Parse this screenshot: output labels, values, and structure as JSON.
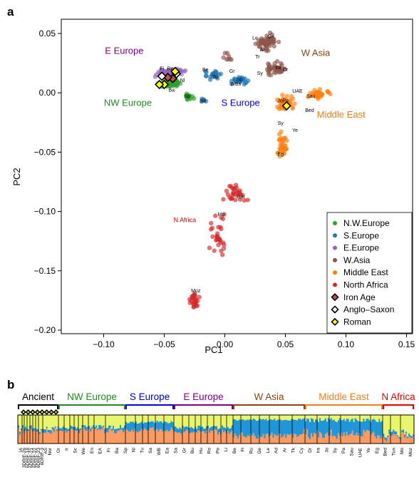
{
  "panel_labels": {
    "a": "a",
    "b": "b"
  },
  "colors": {
    "nw_europe": "#2ca02c",
    "s_europe": "#1f77b4",
    "e_europe": "#9467bd",
    "w_asia": "#8c564b",
    "middle_east": "#ff7f0e",
    "north_africa": "#d62728",
    "ancestry_orange": "#fb9a62",
    "ancestry_blue": "#1e96d8",
    "ancestry_yellow": "#e9f56a"
  },
  "chart_data": [
    {
      "type": "scatter",
      "xlabel": "PC1",
      "ylabel": "PC2",
      "xlim": [
        -0.135,
        0.155
      ],
      "ylim": [
        -0.203,
        0.062
      ],
      "xticks": [
        "−0.10",
        "−0.05",
        "0.00",
        "0.05",
        "0.10",
        "0.15"
      ],
      "xtick_values": [
        -0.1,
        -0.05,
        0.0,
        0.05,
        0.1,
        0.15
      ],
      "yticks": [
        "0.05",
        "0.00",
        "−0.05",
        "−0.10",
        "−0.15",
        "−0.20"
      ],
      "ytick_values": [
        0.05,
        0.0,
        -0.05,
        -0.1,
        -0.15,
        -0.2
      ],
      "grid": false,
      "legend_position": "bottom-right",
      "legend": [
        {
          "label": "N.W.Europe",
          "marker": "dot",
          "color": "#2ca02c"
        },
        {
          "label": "S.Europe",
          "marker": "dot",
          "color": "#1f77b4"
        },
        {
          "label": "E.Europe",
          "marker": "dot",
          "color": "#9467bd"
        },
        {
          "label": "W.Asia",
          "marker": "dot",
          "color": "#8c564b"
        },
        {
          "label": "Middle East",
          "marker": "dot",
          "color": "#ff7f0e"
        },
        {
          "label": "North Africa",
          "marker": "dot",
          "color": "#d62728"
        },
        {
          "label": "Iron Age",
          "marker": "diamond",
          "color": "#c0504d"
        },
        {
          "label": "Anglo–Saxon",
          "marker": "diamond",
          "color": "#ffffff"
        },
        {
          "label": "Roman",
          "marker": "diamond",
          "color": "#ffff00"
        }
      ],
      "region_labels": [
        {
          "text": "E Europe",
          "x": -0.083,
          "y": 0.033,
          "color": "#800080"
        },
        {
          "text": "NW Europe",
          "x": -0.08,
          "y": -0.011,
          "color": "#228b22"
        },
        {
          "text": "S Europe",
          "x": 0.013,
          "y": -0.011,
          "color": "#0000e0"
        },
        {
          "text": "W Asia",
          "x": 0.075,
          "y": 0.031,
          "color": "#8b4513"
        },
        {
          "text": "Middle East",
          "x": 0.096,
          "y": -0.021,
          "color": "#f07e1f"
        },
        {
          "text": "N Africa",
          "x": -0.033,
          "y": -0.109,
          "color": "#e00000"
        }
      ],
      "population_labels": [
        {
          "text": "Fi",
          "x": -0.052,
          "y": 0.019
        },
        {
          "text": "Ru",
          "x": -0.045,
          "y": 0.019
        },
        {
          "text": "Be",
          "x": -0.016,
          "y": 0.018
        },
        {
          "text": "Gr",
          "x": 0.006,
          "y": 0.017
        },
        {
          "text": "Tu",
          "x": -0.008,
          "y": 0.012
        },
        {
          "text": "Nl",
          "x": -0.035,
          "y": 0.009
        },
        {
          "text": "Sp",
          "x": 0.012,
          "y": 0.01
        },
        {
          "text": "WBs",
          "x": 0.009,
          "y": 0.006
        },
        {
          "text": "Ba",
          "x": -0.044,
          "y": 0.001
        },
        {
          "text": "Sp",
          "x": -0.031,
          "y": -0.004
        },
        {
          "text": "Sa",
          "x": -0.018,
          "y": -0.008
        },
        {
          "text": "Ge",
          "x": 0.038,
          "y": 0.046
        },
        {
          "text": "Le",
          "x": 0.025,
          "y": 0.045
        },
        {
          "text": "Ar",
          "x": 0.031,
          "y": 0.035
        },
        {
          "text": "Tr",
          "x": 0.027,
          "y": 0.029
        },
        {
          "text": "Ira",
          "x": 0.044,
          "y": 0.02
        },
        {
          "text": "Or",
          "x": 0.05,
          "y": 0.018
        },
        {
          "text": "Sy",
          "x": 0.029,
          "y": 0.015
        },
        {
          "text": "UAE",
          "x": 0.06,
          "y": 0.0
        },
        {
          "text": "Sau",
          "x": 0.071,
          "y": -0.004
        },
        {
          "text": "JoPs",
          "x": 0.048,
          "y": -0.008
        },
        {
          "text": "Bed",
          "x": 0.07,
          "y": -0.016
        },
        {
          "text": "Sy",
          "x": 0.046,
          "y": -0.027
        },
        {
          "text": "Ye",
          "x": 0.058,
          "y": -0.033
        },
        {
          "text": "Eg",
          "x": 0.046,
          "y": -0.053
        },
        {
          "text": "Tun",
          "x": 0.013,
          "y": -0.089
        },
        {
          "text": "Mo",
          "x": -0.003,
          "y": -0.104
        },
        {
          "text": "Moz",
          "x": -0.024,
          "y": -0.168
        }
      ],
      "ancient_points": [
        {
          "group": "Iron Age",
          "x": -0.043,
          "y": 0.012,
          "color": "#c0504d"
        },
        {
          "group": "Iron Age",
          "x": -0.047,
          "y": 0.013,
          "color": "#c0504d"
        },
        {
          "group": "Anglo–Saxon",
          "x": -0.052,
          "y": 0.014,
          "color": "#ffffff"
        },
        {
          "group": "Anglo–Saxon",
          "x": -0.04,
          "y": 0.016,
          "color": "#ffffff"
        },
        {
          "group": "Roman",
          "x": -0.05,
          "y": 0.007,
          "color": "#ffff00"
        },
        {
          "group": "Roman",
          "x": -0.054,
          "y": 0.007,
          "color": "#ffff00"
        },
        {
          "group": "Roman",
          "x": -0.041,
          "y": 0.018,
          "color": "#ffff00"
        },
        {
          "group": "Roman",
          "x": 0.051,
          "y": -0.011,
          "color": "#ffff00"
        }
      ]
    },
    {
      "type": "bar",
      "subtype": "stacked-ancestry",
      "components": [
        "#fb9a62",
        "#1e96d8",
        "#e9f56a"
      ],
      "groups": [
        {
          "label": "Ancient",
          "color": "#000000"
        },
        {
          "label": "NW Europe",
          "color": "#228b22"
        },
        {
          "label": "S Europe",
          "color": "#0000e0"
        },
        {
          "label": "E Europe",
          "color": "#800080"
        },
        {
          "label": "W Asia",
          "color": "#8b4513"
        },
        {
          "label": "Middle East",
          "color": "#f07e1f"
        },
        {
          "label": "N Africa",
          "color": "#e00000"
        }
      ],
      "sample_labels": [
        "IA",
        "3DRIF-26",
        "6DRIF-18",
        "6DRIF-21",
        "6DRIF-22",
        "6DRIF-23",
        "6DRIF-3",
        "AS",
        "Nor",
        "Or",
        "Ir",
        "Sc",
        "We",
        "En",
        "EA",
        "Fr",
        "Ba",
        "Sp",
        "Nl",
        "Tu",
        "Sa",
        "WB",
        "Ea",
        "Sa",
        "Gr",
        "Bu",
        "Hu",
        "Ro",
        "Po",
        "Li",
        "Be",
        "Fi",
        "Ru",
        "Ge",
        "Le",
        "Ad",
        "Ar",
        "Tk",
        "Cy",
        "Dr",
        "Ira",
        "Jo",
        "Sy",
        "Pa",
        "Sau",
        "UAE",
        "Ye",
        "Eg",
        "Bed",
        "Tun",
        "Mo",
        "Moz"
      ]
    }
  ]
}
